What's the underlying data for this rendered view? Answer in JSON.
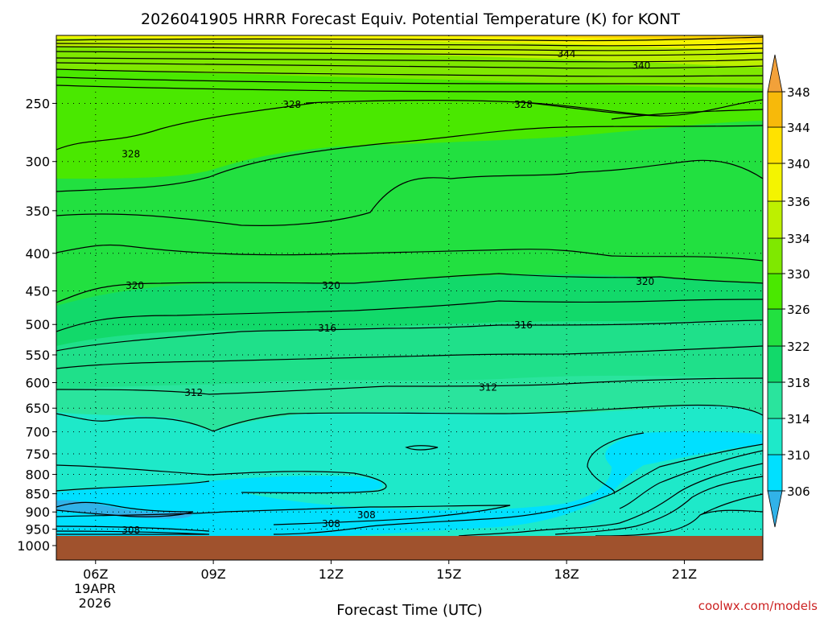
{
  "chart_data": {
    "type": "heatmap",
    "title": "2026041905 HRRR Forecast Equiv. Potential Temperature (K) for KONT",
    "xlabel": "Forecast Time (UTC)",
    "ylabel": "",
    "date_label": [
      "19APR",
      "2026"
    ],
    "x_ticks": [
      "06Z",
      "09Z",
      "12Z",
      "15Z",
      "18Z",
      "21Z"
    ],
    "x_range": [
      5.0,
      23.0
    ],
    "x_tick_values": [
      6,
      9,
      12,
      15,
      18,
      21
    ],
    "y_scale": "log-pressure (reversed)",
    "y_range_hPa": [
      1000,
      200
    ],
    "y_ticks": [
      250,
      300,
      350,
      400,
      450,
      500,
      550,
      600,
      650,
      700,
      750,
      800,
      850,
      900,
      950,
      1000
    ],
    "surface_pressure_hPa": 975,
    "grid": true,
    "colorbar": {
      "levels": [
        306,
        310,
        314,
        318,
        322,
        326,
        330,
        334,
        336,
        340,
        344,
        348
      ],
      "colors": [
        "#00e0ff",
        "#1ee9c9",
        "#2ae49d",
        "#12d96a",
        "#22e040",
        "#4ae800",
        "#7fe800",
        "#bdf000",
        "#f4f400",
        "#ffe200",
        "#f7b90a"
      ],
      "below_color": "#31b2e8",
      "above_color": "#f2a13a",
      "placement": "right"
    },
    "contour_labels": [
      {
        "value": "344",
        "x": 18.0,
        "p": 214
      },
      {
        "value": "340",
        "x": 19.9,
        "p": 222
      },
      {
        "value": "328",
        "x": 11.0,
        "p": 251
      },
      {
        "value": "328",
        "x": 16.9,
        "p": 251
      },
      {
        "value": "328",
        "x": 6.9,
        "p": 293
      },
      {
        "value": "320",
        "x": 7.0,
        "p": 443
      },
      {
        "value": "320",
        "x": 12.0,
        "p": 443
      },
      {
        "value": "320",
        "x": 20.0,
        "p": 437
      },
      {
        "value": "316",
        "x": 11.9,
        "p": 506
      },
      {
        "value": "316",
        "x": 16.9,
        "p": 501
      },
      {
        "value": "312",
        "x": 8.5,
        "p": 619
      },
      {
        "value": "312",
        "x": 16.0,
        "p": 609
      },
      {
        "value": "308",
        "x": 12.0,
        "p": 934
      },
      {
        "value": "308",
        "x": 12.9,
        "p": 909
      },
      {
        "value": "308",
        "x": 6.9,
        "p": 953
      }
    ]
  },
  "credit": "coolwx.com/models"
}
